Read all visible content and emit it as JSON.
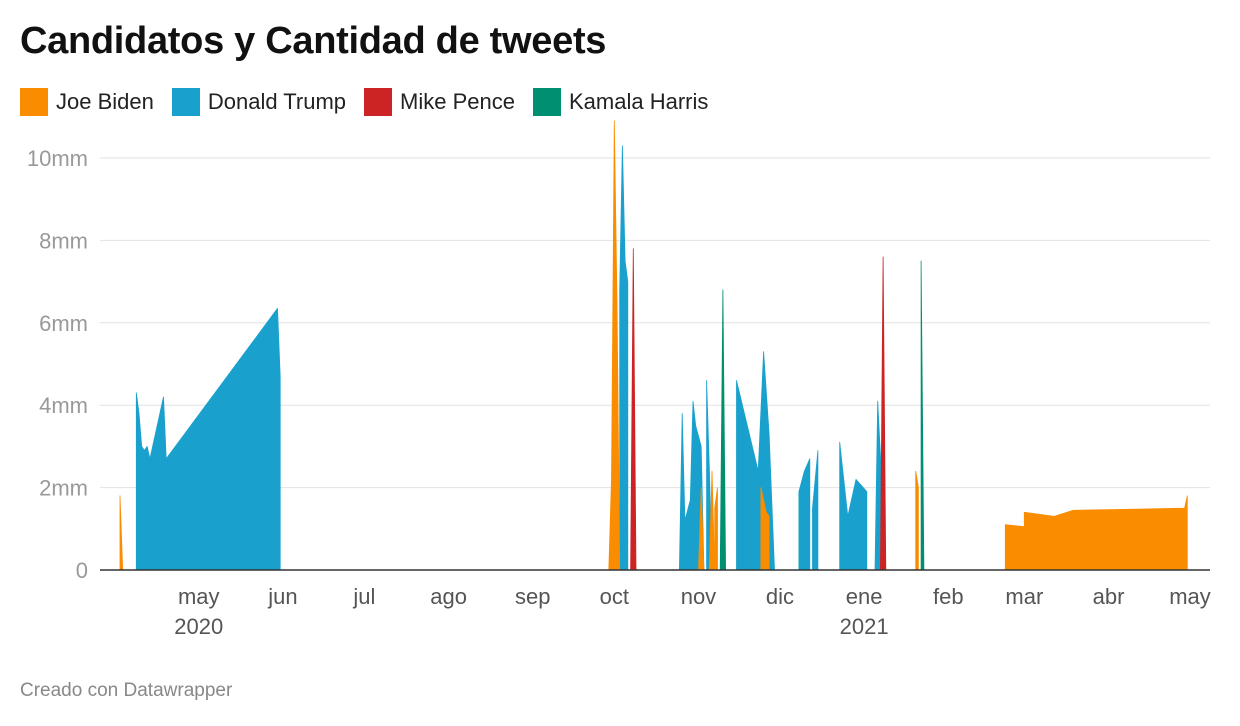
{
  "chart_data": {
    "type": "area",
    "title": "Candidatos y Cantidad de tweets",
    "xlabel": "",
    "ylabel": "",
    "ylim": [
      0,
      10
    ],
    "y_ticks": [
      {
        "value": 0,
        "label": "0"
      },
      {
        "value": 2,
        "label": "2mm"
      },
      {
        "value": 4,
        "label": "4mm"
      },
      {
        "value": 6,
        "label": "6mm"
      },
      {
        "value": 8,
        "label": "8mm"
      },
      {
        "value": 10,
        "label": "10mm"
      }
    ],
    "xlim": [
      "2020-04-02",
      "2021-05-01"
    ],
    "x_ticks": [
      {
        "date": "2020-05-01",
        "label": "may",
        "year": "2020"
      },
      {
        "date": "2020-06-01",
        "label": "jun",
        "year": ""
      },
      {
        "date": "2020-07-01",
        "label": "jul",
        "year": ""
      },
      {
        "date": "2020-08-01",
        "label": "ago",
        "year": ""
      },
      {
        "date": "2020-09-01",
        "label": "sep",
        "year": ""
      },
      {
        "date": "2020-10-01",
        "label": "oct",
        "year": ""
      },
      {
        "date": "2020-11-01",
        "label": "nov",
        "year": ""
      },
      {
        "date": "2020-12-01",
        "label": "dic",
        "year": ""
      },
      {
        "date": "2021-01-01",
        "label": "ene",
        "year": "2021"
      },
      {
        "date": "2021-02-01",
        "label": "feb",
        "year": ""
      },
      {
        "date": "2021-03-01",
        "label": "mar",
        "year": ""
      },
      {
        "date": "2021-04-01",
        "label": "abr",
        "year": ""
      },
      {
        "date": "2021-05-01",
        "label": "may",
        "year": ""
      }
    ],
    "grid": true,
    "legend_position": "top-left",
    "series": [
      {
        "name": "Donald Trump",
        "color": "#1aa0cc",
        "segments": [
          [
            [
              "2020-04-08",
              0
            ],
            [
              "2020-04-08",
              4.3
            ],
            [
              "2020-04-09",
              3.8
            ],
            [
              "2020-04-10",
              3.0
            ],
            [
              "2020-04-11",
              2.9
            ],
            [
              "2020-04-12",
              3.0
            ],
            [
              "2020-04-13",
              2.7
            ],
            [
              "2020-04-18",
              4.2
            ],
            [
              "2020-04-19",
              2.7
            ],
            [
              "2020-05-30",
              6.35
            ],
            [
              "2020-05-31",
              4.7
            ],
            [
              "2020-05-31",
              0
            ]
          ],
          [
            [
              "2020-10-03",
              0
            ],
            [
              "2020-10-03",
              6.8
            ],
            [
              "2020-10-04",
              10.3
            ],
            [
              "2020-10-05",
              7.5
            ],
            [
              "2020-10-06",
              7.0
            ],
            [
              "2020-10-06",
              0
            ]
          ],
          [
            [
              "2020-10-25",
              0
            ],
            [
              "2020-10-26",
              3.8
            ],
            [
              "2020-10-27",
              1.2
            ],
            [
              "2020-10-29",
              1.7
            ],
            [
              "2020-10-30",
              4.1
            ],
            [
              "2020-10-31",
              3.5
            ],
            [
              "2020-11-02",
              3.0
            ],
            [
              "2020-11-03",
              0
            ]
          ],
          [
            [
              "2020-11-04",
              0
            ],
            [
              "2020-11-04",
              4.6
            ],
            [
              "2020-11-05",
              2.5
            ],
            [
              "2020-11-06",
              0
            ]
          ],
          [
            [
              "2020-11-15",
              0
            ],
            [
              "2020-11-15",
              4.6
            ],
            [
              "2020-11-23",
              2.4
            ],
            [
              "2020-11-25",
              5.3
            ],
            [
              "2020-11-27",
              3.3
            ],
            [
              "2020-11-29",
              0
            ]
          ],
          [
            [
              "2020-12-08",
              0
            ],
            [
              "2020-12-08",
              1.9
            ],
            [
              "2020-12-10",
              2.4
            ],
            [
              "2020-12-12",
              2.7
            ],
            [
              "2020-12-12",
              0
            ]
          ],
          [
            [
              "2020-12-13",
              0
            ],
            [
              "2020-12-13",
              1.5
            ],
            [
              "2020-12-15",
              2.9
            ],
            [
              "2020-12-15",
              0
            ]
          ],
          [
            [
              "2020-12-23",
              0
            ],
            [
              "2020-12-23",
              3.1
            ],
            [
              "2020-12-26",
              1.3
            ],
            [
              "2020-12-29",
              2.2
            ],
            [
              "2021-01-02",
              1.9
            ],
            [
              "2021-01-02",
              0
            ]
          ],
          [
            [
              "2021-01-05",
              0
            ],
            [
              "2021-01-06",
              4.1
            ],
            [
              "2021-01-07",
              2.8
            ],
            [
              "2021-01-08",
              1.5
            ],
            [
              "2021-01-08",
              0
            ]
          ]
        ]
      },
      {
        "name": "Joe Biden",
        "color": "#fa8c00",
        "segments": [
          [
            [
              "2020-04-02",
              0
            ],
            [
              "2020-04-02",
              1.8
            ],
            [
              "2020-04-03",
              0
            ]
          ],
          [
            [
              "2020-09-29",
              0
            ],
            [
              "2020-09-30",
              2.2
            ],
            [
              "2020-10-01",
              10.9
            ],
            [
              "2020-10-02",
              6.5
            ],
            [
              "2020-10-03",
              0
            ]
          ],
          [
            [
              "2020-11-01",
              0
            ],
            [
              "2020-11-02",
              2.0
            ],
            [
              "2020-11-03",
              0
            ]
          ],
          [
            [
              "2020-11-05",
              0
            ],
            [
              "2020-11-06",
              2.4
            ],
            [
              "2020-11-07",
              0
            ]
          ],
          [
            [
              "2020-11-07",
              0
            ],
            [
              "2020-11-07",
              1.5
            ],
            [
              "2020-11-08",
              2.0
            ],
            [
              "2020-11-08",
              0
            ]
          ],
          [
            [
              "2020-11-24",
              0
            ],
            [
              "2020-11-24",
              2.0
            ],
            [
              "2020-11-26",
              1.4
            ],
            [
              "2020-11-27",
              1.3
            ],
            [
              "2020-11-27",
              0
            ]
          ],
          [
            [
              "2021-01-20",
              0
            ],
            [
              "2021-01-20",
              2.4
            ],
            [
              "2021-01-21",
              2.0
            ],
            [
              "2021-01-21",
              0
            ]
          ],
          [
            [
              "2021-02-22",
              0
            ],
            [
              "2021-02-22",
              1.1
            ],
            [
              "2021-03-01",
              1.05
            ],
            [
              "2021-03-01",
              1.4
            ],
            [
              "2021-03-12",
              1.3
            ],
            [
              "2021-03-19",
              1.45
            ],
            [
              "2021-04-29",
              1.5
            ],
            [
              "2021-04-30",
              1.8
            ],
            [
              "2021-04-30",
              0
            ]
          ]
        ]
      },
      {
        "name": "Mike Pence",
        "color": "#cc2424",
        "segments": [
          [
            [
              "2020-10-07",
              0
            ],
            [
              "2020-10-08",
              7.8
            ],
            [
              "2020-10-09",
              0
            ]
          ],
          [
            [
              "2021-01-07",
              0
            ],
            [
              "2021-01-08",
              7.6
            ],
            [
              "2021-01-09",
              0
            ]
          ]
        ]
      },
      {
        "name": "Kamala Harris",
        "color": "#008f70",
        "segments": [
          [
            [
              "2020-11-09",
              0
            ],
            [
              "2020-11-10",
              6.8
            ],
            [
              "2020-11-11",
              0
            ]
          ],
          [
            [
              "2021-01-22",
              0
            ],
            [
              "2021-01-22",
              7.5
            ],
            [
              "2021-01-23",
              0
            ]
          ]
        ]
      }
    ],
    "legend_order": [
      "Joe Biden",
      "Donald Trump",
      "Mike Pence",
      "Kamala Harris"
    ]
  },
  "footer": "Creado con Datawrapper"
}
